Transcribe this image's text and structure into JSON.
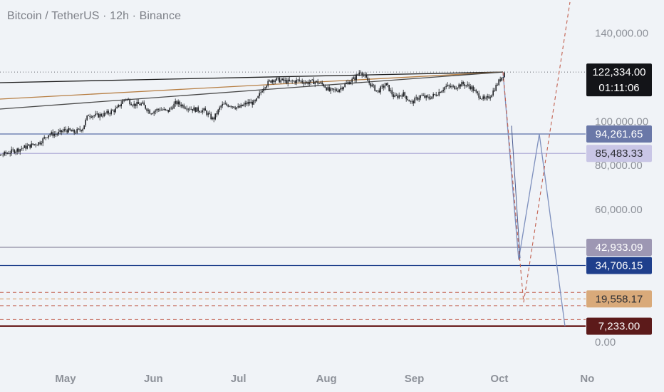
{
  "header": {
    "title": "Bitcoin / TetherUS · 12h · Binance"
  },
  "colors": {
    "background": "#f0f3f7",
    "candle": "#1f2125",
    "fib_blue": "#5a6fa8",
    "fib_lavender": "#b3b0d8",
    "fib_gray": "#8e8aa3",
    "support_navy": "#1f3f8c",
    "orange_dashed": "#d9a06a",
    "red_dashed": "#c2604f",
    "dark_red": "#6b1f1f",
    "trend_black": "#1e1e1e",
    "trend_brown": "#b77f44",
    "trend_gray": "#4a4a4a"
  },
  "chart_data": {
    "type": "candlestick",
    "title": "Bitcoin / TetherUS · 12h · Binance",
    "ylim": [
      0,
      150000
    ],
    "y_ticks": [
      "140,000.00",
      "100,000.00",
      "80,000.00",
      "60,000.00",
      "0.00"
    ],
    "x_ticks": [
      "May",
      "Jun",
      "Jul",
      "Aug",
      "Sep",
      "Oct",
      "No"
    ],
    "grid": false,
    "current_price": {
      "value": "122,334.00",
      "countdown": "01:11:06"
    },
    "price_path": [
      [
        "2025-04-22",
        90500
      ],
      [
        "2025-04-25",
        94200
      ],
      [
        "2025-04-28",
        94300
      ],
      [
        "2025-05-01",
        96200
      ],
      [
        "2025-05-04",
        95000
      ],
      [
        "2025-05-07",
        96800
      ],
      [
        "2025-05-09",
        103000
      ],
      [
        "2025-05-12",
        102500
      ],
      [
        "2025-05-15",
        103300
      ],
      [
        "2025-05-19",
        105500
      ],
      [
        "2025-05-22",
        110500
      ],
      [
        "2025-05-25",
        107600
      ],
      [
        "2025-05-28",
        107800
      ],
      [
        "2025-05-31",
        104000
      ],
      [
        "2025-06-03",
        105600
      ],
      [
        "2025-06-06",
        104500
      ],
      [
        "2025-06-09",
        108500
      ],
      [
        "2025-06-12",
        106800
      ],
      [
        "2025-06-15",
        105500
      ],
      [
        "2025-06-19",
        104800
      ],
      [
        "2025-06-22",
        100800
      ],
      [
        "2025-06-25",
        107300
      ],
      [
        "2025-06-28",
        107500
      ],
      [
        "2025-07-01",
        106000
      ],
      [
        "2025-07-04",
        108200
      ],
      [
        "2025-07-07",
        108600
      ],
      [
        "2025-07-10",
        116000
      ],
      [
        "2025-07-13",
        119000
      ],
      [
        "2025-07-16",
        118500
      ],
      [
        "2025-07-19",
        117800
      ],
      [
        "2025-07-22",
        118500
      ],
      [
        "2025-07-25",
        117600
      ],
      [
        "2025-07-28",
        118000
      ],
      [
        "2025-07-31",
        116500
      ],
      [
        "2025-08-02",
        113800
      ],
      [
        "2025-08-05",
        114200
      ],
      [
        "2025-08-08",
        117000
      ],
      [
        "2025-08-11",
        119500
      ],
      [
        "2025-08-13",
        123000
      ],
      [
        "2025-08-16",
        117500
      ],
      [
        "2025-08-19",
        113500
      ],
      [
        "2025-08-22",
        116800
      ],
      [
        "2025-08-25",
        110800
      ],
      [
        "2025-08-28",
        112500
      ],
      [
        "2025-08-31",
        108300
      ],
      [
        "2025-09-03",
        111500
      ],
      [
        "2025-09-06",
        110500
      ],
      [
        "2025-09-09",
        112500
      ],
      [
        "2025-09-12",
        115800
      ],
      [
        "2025-09-15",
        115400
      ],
      [
        "2025-09-18",
        117000
      ],
      [
        "2025-09-21",
        115500
      ],
      [
        "2025-09-23",
        112500
      ],
      [
        "2025-09-26",
        109500
      ],
      [
        "2025-09-28",
        112000
      ],
      [
        "2025-10-01",
        118500
      ],
      [
        "2025-10-02",
        120500
      ],
      [
        "2025-10-03",
        122334
      ]
    ],
    "horizontal_levels": [
      {
        "value": 94261.65,
        "label": "94,261.65",
        "style": "solid",
        "color": "#5a6fa8"
      },
      {
        "value": 85483.33,
        "label": "85,483.33",
        "style": "solid",
        "color": "#b3b0d8"
      },
      {
        "value": 42933.09,
        "label": "42,933.09",
        "style": "solid",
        "color": "#8e8aa3"
      },
      {
        "value": 34706.15,
        "label": "34,706.15",
        "style": "solid",
        "color": "#1f3f8c"
      },
      {
        "value": 19558.17,
        "label": "19,558.17",
        "style": "dashed",
        "color": "#d9a06a"
      },
      {
        "value": 7233.0,
        "label": "7,233.00",
        "style": "solid",
        "color": "#6b1f1f"
      }
    ]
  }
}
